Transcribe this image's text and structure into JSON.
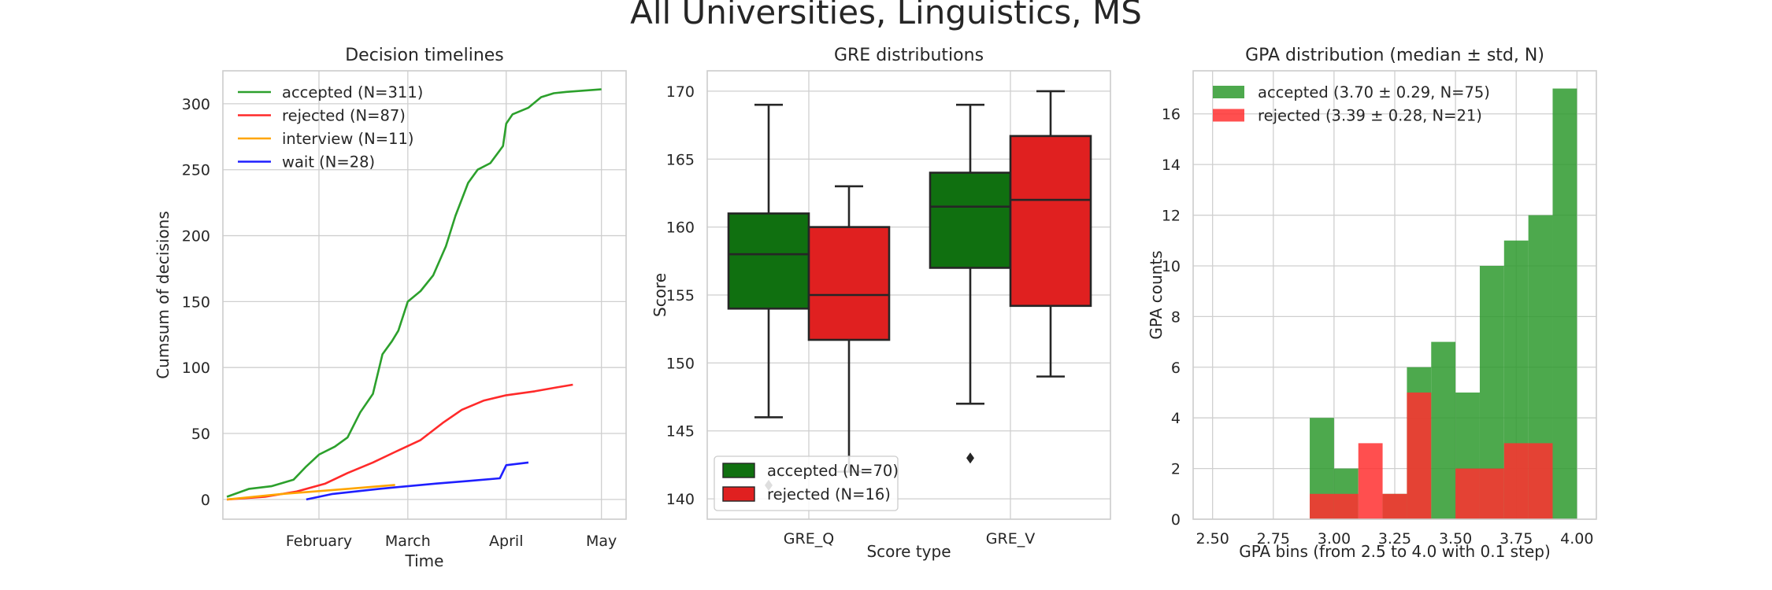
{
  "suptitle": "All Universities, Linguistics, MS",
  "chart_data": [
    {
      "type": "line",
      "title": "Decision timelines",
      "xlabel": "Time",
      "ylabel": "Cumsum of decisions",
      "x_ticks": [
        "February",
        "March",
        "April",
        "May"
      ],
      "ylim": [
        -15,
        325
      ],
      "y_ticks": [
        0,
        50,
        100,
        150,
        200,
        250,
        300
      ],
      "grid": true,
      "legend_position": "top-left",
      "series": [
        {
          "name": "accepted (N=311)",
          "color": "#2ca02c",
          "x": [
            "2018-01-03",
            "2018-01-10",
            "2018-01-17",
            "2018-01-24",
            "2018-01-28",
            "2018-02-01",
            "2018-02-06",
            "2018-02-10",
            "2018-02-14",
            "2018-02-18",
            "2018-02-21",
            "2018-02-24",
            "2018-02-26",
            "2018-03-01",
            "2018-03-05",
            "2018-03-09",
            "2018-03-13",
            "2018-03-16",
            "2018-03-20",
            "2018-03-23",
            "2018-03-27",
            "2018-03-31",
            "2018-04-01",
            "2018-04-03",
            "2018-04-08",
            "2018-04-12",
            "2018-04-16",
            "2018-04-20",
            "2018-05-01"
          ],
          "y": [
            2,
            8,
            10,
            15,
            25,
            34,
            40,
            47,
            66,
            80,
            110,
            120,
            128,
            150,
            158,
            170,
            192,
            215,
            240,
            250,
            255,
            268,
            285,
            292,
            297,
            305,
            308,
            309,
            311
          ]
        },
        {
          "name": "rejected (N=87)",
          "color": "#ff2a2a",
          "x": [
            "2018-01-03",
            "2018-01-15",
            "2018-01-25",
            "2018-02-03",
            "2018-02-10",
            "2018-02-18",
            "2018-02-25",
            "2018-03-05",
            "2018-03-12",
            "2018-03-18",
            "2018-03-25",
            "2018-04-01",
            "2018-04-10",
            "2018-04-17",
            "2018-04-22"
          ],
          "y": [
            0,
            2,
            6,
            12,
            20,
            28,
            36,
            45,
            58,
            68,
            75,
            79,
            82,
            85,
            87
          ]
        },
        {
          "name": "interview (N=11)",
          "color": "#ffa500",
          "x": [
            "2018-01-03",
            "2018-01-20",
            "2018-02-10",
            "2018-02-25"
          ],
          "y": [
            0,
            4,
            8,
            11
          ]
        },
        {
          "name": "wait (N=28)",
          "color": "#1f1fff",
          "x": [
            "2018-01-28",
            "2018-02-05",
            "2018-02-20",
            "2018-03-10",
            "2018-03-20",
            "2018-03-30",
            "2018-04-01",
            "2018-04-08"
          ],
          "y": [
            0,
            4,
            8,
            12,
            14,
            16,
            26,
            28
          ]
        }
      ]
    },
    {
      "type": "box",
      "title": "GRE distributions",
      "xlabel": "Score type",
      "ylabel": "Score",
      "categories": [
        "GRE_Q",
        "GRE_V"
      ],
      "ylim": [
        138.5,
        171.5
      ],
      "y_ticks": [
        140,
        145,
        150,
        155,
        160,
        165,
        170
      ],
      "grid": true,
      "legend_position": "lower-left",
      "series": [
        {
          "name": "accepted (N=70)",
          "color": "#107010",
          "boxes": [
            {
              "whislo": 146,
              "q1": 154,
              "med": 158,
              "q3": 161,
              "whishi": 169,
              "fliers": [
                141
              ]
            },
            {
              "whislo": 147,
              "q1": 157,
              "med": 161.5,
              "q3": 164,
              "whishi": 169,
              "fliers": [
                143
              ]
            }
          ]
        },
        {
          "name": "rejected (N=16)",
          "color": "#e02020",
          "boxes": [
            {
              "whislo": 142,
              "q1": 151.7,
              "med": 155,
              "q3": 160,
              "whishi": 163,
              "fliers": []
            },
            {
              "whislo": 149,
              "q1": 154.2,
              "med": 162,
              "q3": 166.7,
              "whishi": 170,
              "fliers": []
            }
          ]
        }
      ]
    },
    {
      "type": "histogram",
      "title": "GPA distribution (median ± std, N)",
      "xlabel": "GPA bins (from 2.5 to 4.0 with 0.1 step)",
      "ylabel": "GPA counts",
      "xlim": [
        2.42,
        4.08
      ],
      "ylim": [
        0,
        17.7
      ],
      "x_ticks": [
        "2.50",
        "2.75",
        "3.00",
        "3.25",
        "3.50",
        "3.75",
        "4.00"
      ],
      "y_ticks": [
        0,
        2,
        4,
        6,
        8,
        10,
        12,
        14,
        16
      ],
      "grid": true,
      "legend_position": "top-left",
      "bin_edges": [
        2.5,
        2.6,
        2.7,
        2.8,
        2.9,
        3.0,
        3.1,
        3.2,
        3.3,
        3.4,
        3.5,
        3.6,
        3.7,
        3.8,
        3.9,
        4.0
      ],
      "series": [
        {
          "name": "accepted (3.70 ± 0.29, N=75)",
          "color": "#2e9a2e",
          "opacity": 0.85,
          "counts": [
            0,
            0,
            0,
            0,
            4,
            2,
            0,
            1,
            6,
            7,
            5,
            10,
            11,
            12,
            17
          ]
        },
        {
          "name": "rejected (3.39 ± 0.28, N=21)",
          "color": "#ff3030",
          "opacity": 0.85,
          "counts": [
            0,
            0,
            0,
            0,
            1,
            1,
            3,
            1,
            5,
            0,
            2,
            2,
            3,
            3,
            0
          ]
        }
      ]
    }
  ]
}
